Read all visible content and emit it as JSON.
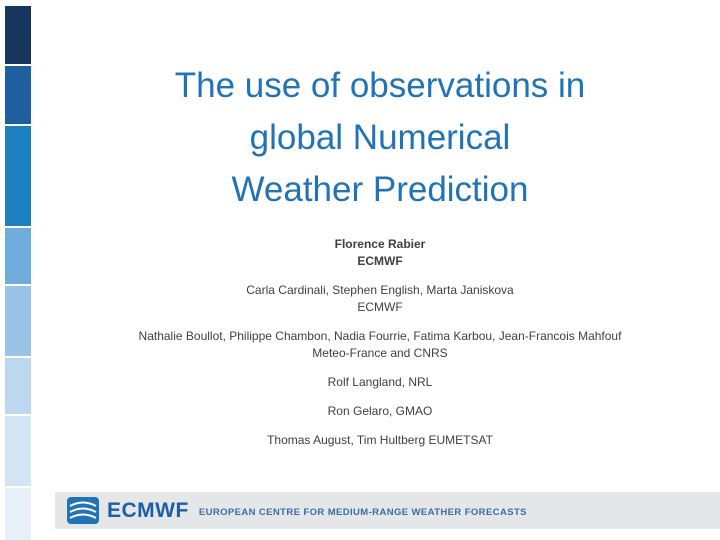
{
  "slide": {
    "title": {
      "lines": [
        "The use of observations in",
        "global Numerical",
        "Weather Prediction"
      ],
      "color": "#2173B8"
    },
    "authors": {
      "lines": [
        "Florence Rabier",
        "ECMWF",
        "Carla Cardinali, Stephen English, Marta Janiskova",
        "ECMWF",
        "Nathalie Boullot, Philippe Chambon, Nadia Fourrie, Fatima Karbou, Jean-Francois Mahfouf",
        "Meteo-France and CNRS",
        "Rolf Langland, NRL",
        "Ron Gelaro, GMAO",
        "Thomas August, Tim Hultberg EUMETSAT"
      ],
      "text_color": "#404040"
    }
  },
  "sidebar": {
    "blocks": [
      "#16365D",
      "#1F5FA0",
      "#1C80C3",
      "#6FAEDC",
      "#9AC4E6",
      "#BCD7EE",
      "#D3E5F4",
      "#E7F0F9"
    ]
  },
  "footer": {
    "logo_icon": "ecmwf-logo",
    "brand": "ECMWF",
    "tagline": "EUROPEAN CENTRE FOR MEDIUM-RANGE WEATHER FORECASTS",
    "bar_color": "#E5E6E7",
    "brand_color": "#1B5FA6"
  }
}
